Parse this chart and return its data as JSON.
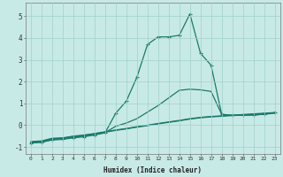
{
  "xlabel": "Humidex (Indice chaleur)",
  "ylabel": "",
  "background_color": "#c8eae6",
  "grid_color": "#a0d0cc",
  "line_color": "#1a7a6a",
  "xlim": [
    -0.5,
    23.5
  ],
  "ylim": [
    -1.3,
    5.6
  ],
  "xticks": [
    0,
    1,
    2,
    3,
    4,
    5,
    6,
    7,
    8,
    9,
    10,
    11,
    12,
    13,
    14,
    15,
    16,
    17,
    18,
    19,
    20,
    21,
    22,
    23
  ],
  "yticks": [
    -1,
    0,
    1,
    2,
    3,
    4,
    5
  ],
  "series": [
    {
      "x": [
        0,
        1,
        2,
        3,
        4,
        5,
        6,
        7,
        8,
        9,
        10,
        11,
        12,
        13,
        14,
        15,
        16,
        17,
        18,
        19,
        20,
        21,
        22,
        23
      ],
      "y": [
        -0.75,
        -0.72,
        -0.6,
        -0.58,
        -0.5,
        -0.45,
        -0.38,
        -0.3,
        -0.22,
        -0.15,
        -0.07,
        0.0,
        0.08,
        0.15,
        0.22,
        0.3,
        0.36,
        0.4,
        0.43,
        0.46,
        0.49,
        0.52,
        0.55,
        0.58
      ],
      "marker": null,
      "linestyle": "-",
      "linewidth": 0.9
    },
    {
      "x": [
        0,
        1,
        2,
        3,
        4,
        5,
        6,
        7,
        8,
        9,
        10,
        11,
        12,
        13,
        14,
        15,
        16,
        17,
        18,
        19,
        20,
        21,
        22,
        23
      ],
      "y": [
        -0.78,
        -0.75,
        -0.62,
        -0.6,
        -0.52,
        -0.47,
        -0.4,
        -0.32,
        -0.24,
        -0.17,
        -0.09,
        -0.02,
        0.06,
        0.13,
        0.2,
        0.28,
        0.34,
        0.38,
        0.41,
        0.44,
        0.47,
        0.5,
        0.53,
        0.56
      ],
      "marker": null,
      "linestyle": "-",
      "linewidth": 0.9
    },
    {
      "x": [
        0,
        1,
        2,
        3,
        4,
        5,
        6,
        7,
        8,
        9,
        10,
        11,
        12,
        13,
        14,
        15,
        16,
        17,
        18,
        19,
        20,
        21,
        22,
        23
      ],
      "y": [
        -0.8,
        -0.78,
        -0.65,
        -0.62,
        -0.55,
        -0.5,
        -0.42,
        -0.34,
        -0.05,
        0.1,
        0.3,
        0.6,
        0.9,
        1.25,
        1.6,
        1.65,
        1.62,
        1.55,
        0.5,
        0.45,
        0.45,
        0.47,
        0.5,
        0.55
      ],
      "marker": null,
      "linestyle": "-",
      "linewidth": 0.9
    },
    {
      "x": [
        0,
        1,
        2,
        3,
        4,
        5,
        6,
        7,
        8,
        9,
        10,
        11,
        12,
        13,
        14,
        15,
        16,
        17,
        18,
        19,
        20,
        21,
        22,
        23
      ],
      "y": [
        -0.82,
        -0.78,
        -0.68,
        -0.65,
        -0.58,
        -0.53,
        -0.45,
        -0.35,
        0.55,
        1.1,
        2.2,
        3.7,
        4.05,
        4.05,
        4.12,
        5.1,
        3.3,
        2.75,
        0.5,
        0.45,
        0.45,
        0.47,
        0.5,
        0.58
      ],
      "marker": "+",
      "linestyle": "-",
      "linewidth": 0.9,
      "markersize": 3.5
    }
  ]
}
